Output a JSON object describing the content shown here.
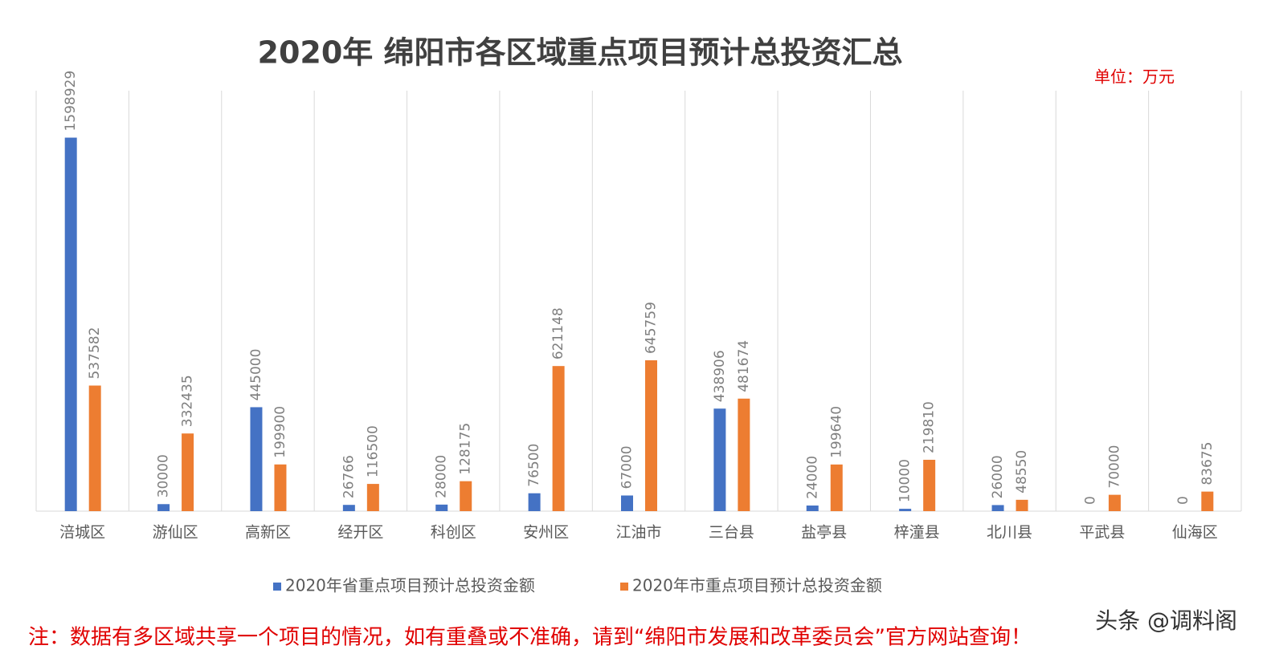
{
  "chart_data": {
    "type": "bar",
    "title": "2020年   绵阳市各区域重点项目预计总投资汇总",
    "unit": "单位：万元",
    "categories": [
      "涪城区",
      "游仙区",
      "高新区",
      "经开区",
      "科创区",
      "安州区",
      "江油市",
      "三台县",
      "盐亭县",
      "梓潼县",
      "北川县",
      "平武县",
      "仙海区"
    ],
    "series": [
      {
        "name": "2020年省重点项目预计总投资金额",
        "color": "#4472c4",
        "values": [
          1598929,
          30000,
          445000,
          26766,
          28000,
          76500,
          67000,
          438906,
          24000,
          10000,
          26000,
          0,
          0
        ]
      },
      {
        "name": "2020年市重点项目预计总投资金额",
        "color": "#ed7d31",
        "values": [
          537582,
          332435,
          199900,
          116500,
          128175,
          621148,
          645759,
          481674,
          199640,
          219810,
          48550,
          70000,
          83675
        ]
      }
    ],
    "ylim": [
      0,
      1800000
    ],
    "note": "注：数据有多区域共享一个项目的情况，如有重叠或不准确，请到“绵阳市发展和改革委员会”官方网站查询！",
    "watermark": "头条 @调料阁"
  }
}
